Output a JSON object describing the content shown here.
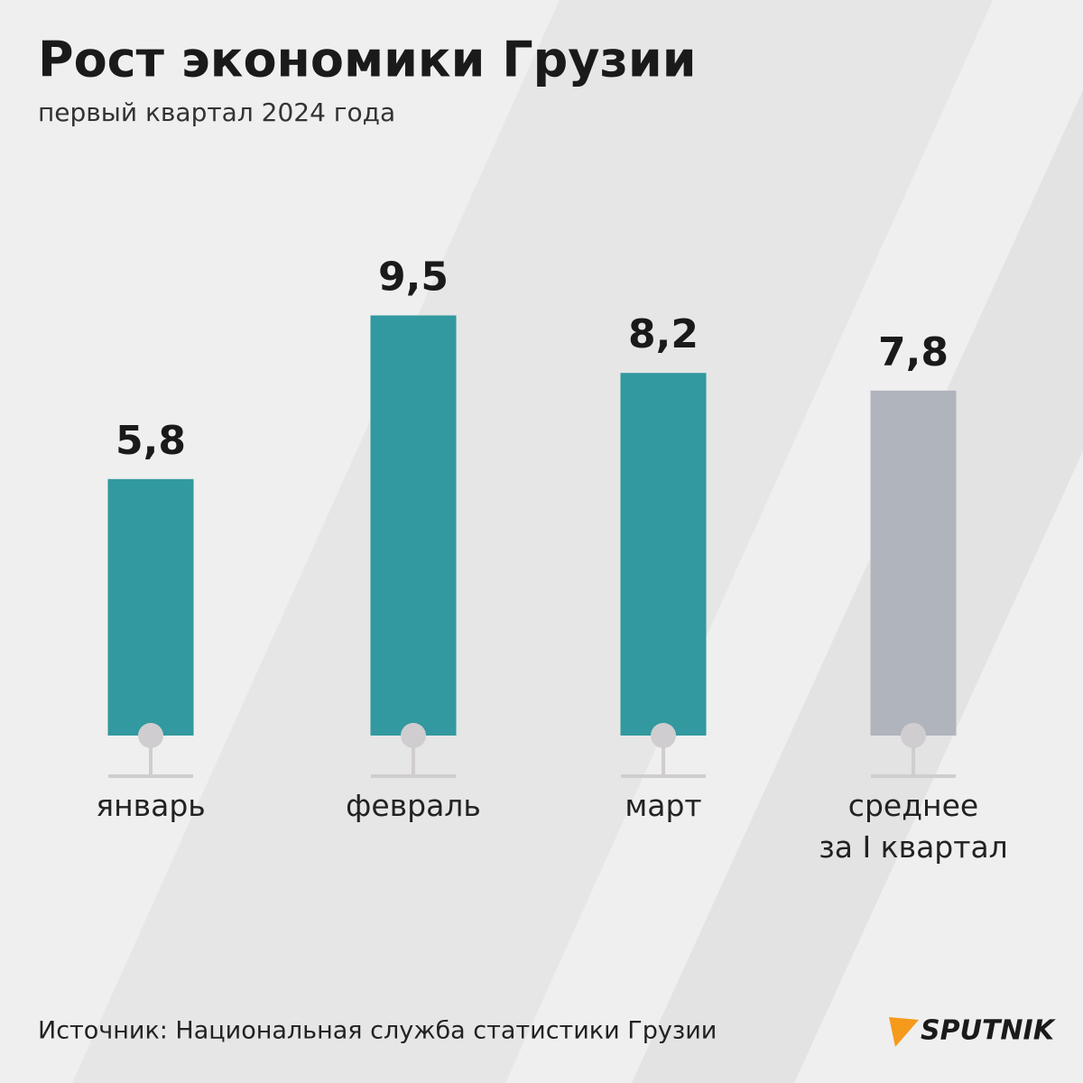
{
  "chart_data": {
    "type": "bar",
    "title": "Рост экономики Грузии",
    "subtitle": "первый квартал 2024 года",
    "categories": [
      "январь",
      "февраль",
      "март",
      "среднее\nза I квартал"
    ],
    "values": [
      5.8,
      9.5,
      8.2,
      7.8
    ],
    "value_labels": [
      "5,8",
      "9,5",
      "8,2",
      "7,8"
    ],
    "colors": [
      "#31999f",
      "#31999f",
      "#31999f",
      "#b0b4bd"
    ],
    "source": "Источник: Национальная служба статистики Грузии",
    "logo": "SPUTNIK"
  }
}
